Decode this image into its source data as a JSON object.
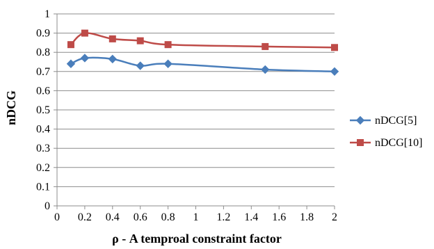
{
  "chart_data": {
    "type": "line",
    "title": "",
    "xlabel": "ρ - A temproal constraint factor",
    "ylabel": "nDCG",
    "xlim": [
      0,
      2
    ],
    "ylim": [
      0,
      1
    ],
    "xticks": [
      "0",
      "0.2",
      "0.4",
      "0.6",
      "0.8",
      "1",
      "1.2",
      "1.4",
      "1.6",
      "1.8",
      "2"
    ],
    "yticks": [
      "0",
      "0.1",
      "0.2",
      "0.3",
      "0.4",
      "0.5",
      "0.6",
      "0.7",
      "0.8",
      "0.9",
      "1"
    ],
    "grid": true,
    "legend_position": "right",
    "series": [
      {
        "name": "nDCG[5]",
        "color": "#4A7EBB",
        "marker": "diamond",
        "x": [
          0.1,
          0.2,
          0.4,
          0.6,
          0.8,
          1.5,
          2.0
        ],
        "values": [
          0.74,
          0.77,
          0.765,
          0.73,
          0.74,
          0.71,
          0.7
        ]
      },
      {
        "name": "nDCG[10]",
        "color": "#BE4B48",
        "marker": "square",
        "x": [
          0.1,
          0.2,
          0.4,
          0.6,
          0.8,
          1.5,
          2.0
        ],
        "values": [
          0.84,
          0.9,
          0.87,
          0.86,
          0.84,
          0.83,
          0.825
        ]
      }
    ]
  }
}
